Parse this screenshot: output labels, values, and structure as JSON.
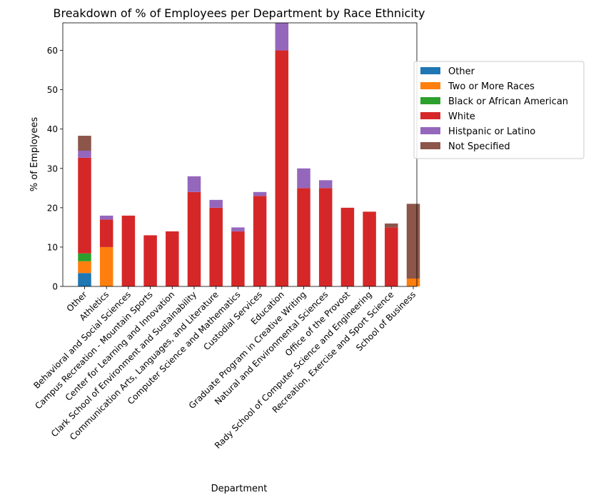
{
  "chart_data": {
    "type": "bar",
    "stacked": true,
    "title": "Breakdown of % of Employees per Department by Race Ethnicity",
    "xlabel": "Department",
    "ylabel": "% of Employees",
    "ylim": [
      0,
      67
    ],
    "yticks": [
      0,
      10,
      20,
      30,
      40,
      50,
      60
    ],
    "grid": false,
    "legend_position": "right",
    "categories": [
      "Other",
      "Athletics",
      "Behavioral and Social Sciences",
      "Campus Recreation - Mountain Sports",
      "Center for Learning and Innovation",
      "Clark School of Environment and Sustainability",
      "Communication Arts, Languages, and Literature",
      "Computer Science and Mathematics",
      "Custodial Services",
      "Education",
      "Graduate Program in Creative Writing",
      "Natural and Environmental Sciences",
      "Office of the Provost",
      "Rady School of Computer Science and Engineering",
      "Recreation, Exercise and Sport Science",
      "School of Business"
    ],
    "series": [
      {
        "name": "Other",
        "color": "#1f77b4",
        "values": [
          3.4,
          0,
          0,
          0,
          0,
          0,
          0,
          0,
          0,
          0,
          0,
          0,
          0,
          0,
          0,
          0
        ]
      },
      {
        "name": "Two or More Races",
        "color": "#ff7f0e",
        "values": [
          3.0,
          10,
          0,
          0,
          0,
          0,
          0,
          0,
          0,
          0,
          0,
          0,
          0,
          0,
          0,
          2
        ]
      },
      {
        "name": "Black or African American",
        "color": "#2ca02c",
        "values": [
          2.0,
          0,
          0,
          0,
          0,
          0,
          0,
          0,
          0,
          0,
          0,
          0,
          0,
          0,
          0,
          0
        ]
      },
      {
        "name": "White",
        "color": "#d62728",
        "values": [
          24.3,
          7,
          18,
          13,
          14,
          24,
          20,
          14,
          23,
          60,
          25,
          25,
          20,
          19,
          15,
          0
        ]
      },
      {
        "name": "Histpanic or Latino",
        "color": "#9467bd",
        "values": [
          1.8,
          1,
          0,
          0,
          0,
          4,
          2,
          1,
          1,
          7,
          5,
          2,
          0,
          0,
          0,
          0
        ]
      },
      {
        "name": "Not Specified",
        "color": "#8c564b",
        "values": [
          3.8,
          0,
          0,
          0,
          0,
          0,
          0,
          0,
          0,
          0,
          0,
          0,
          0,
          0,
          1,
          19
        ]
      }
    ]
  }
}
